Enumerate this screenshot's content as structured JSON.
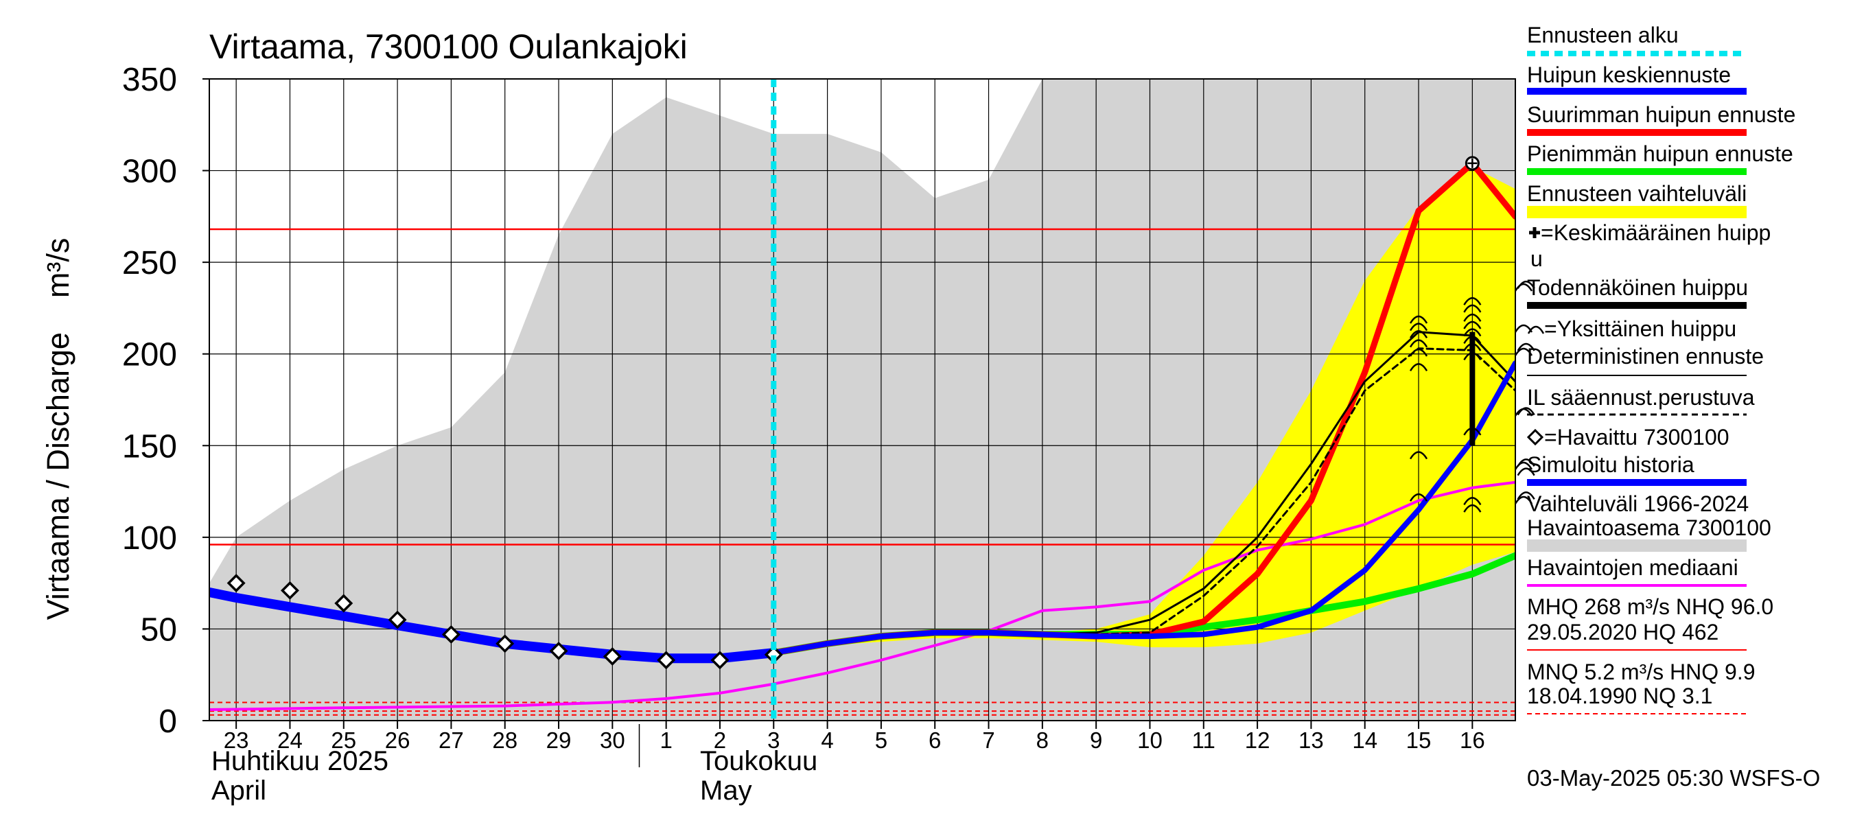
{
  "chart_data": {
    "type": "line",
    "title": "Virtaama, 7300100 Oulankajoki",
    "ylabel": "Virtaama / Discharge    m³/s",
    "ylim": [
      0,
      350
    ],
    "yticks": [
      0,
      50,
      100,
      150,
      200,
      250,
      300,
      350
    ],
    "x_day_range": [
      22.5,
      46.8
    ],
    "x_tick_labels": [
      "23",
      "24",
      "25",
      "26",
      "27",
      "28",
      "29",
      "30",
      "1",
      "2",
      "3",
      "4",
      "5",
      "6",
      "7",
      "8",
      "9",
      "10",
      "11",
      "12",
      "13",
      "14",
      "15",
      "16"
    ],
    "x_tick_days": [
      23,
      24,
      25,
      26,
      27,
      28,
      29,
      30,
      31,
      32,
      33,
      34,
      35,
      36,
      37,
      38,
      39,
      40,
      41,
      42,
      43,
      44,
      45,
      46
    ],
    "month_labels": {
      "april_fi": "Huhtikuu  2025",
      "april_en": "April",
      "may_fi": "Toukokuu",
      "may_en": "May"
    },
    "forecast_start_day": 33,
    "reference_lines": {
      "MHQ": 268,
      "NHQ": 96.0,
      "MNQ": 5.2,
      "HNQ": 9.9,
      "NQ": 3.1
    },
    "history_range": {
      "name": "Vaihteluväli 1966-2024",
      "x": [
        22.5,
        23,
        24,
        25,
        26,
        27,
        28,
        29,
        30,
        31,
        32,
        33,
        34,
        35,
        36,
        37,
        38,
        39,
        39.5,
        40,
        46.8
      ],
      "upper": [
        75,
        100,
        120,
        137,
        150,
        160,
        190,
        265,
        320,
        340,
        330,
        320,
        320,
        310,
        285,
        295,
        350,
        350,
        350,
        350,
        350
      ],
      "lower": [
        0,
        0,
        0,
        0,
        0,
        0,
        0,
        0,
        0,
        0,
        0,
        0,
        0,
        0,
        0,
        0,
        0,
        0,
        0,
        0,
        0
      ]
    },
    "forecast_range": {
      "name": "Ennusteen vaihteluväli",
      "x": [
        33,
        34,
        35,
        36,
        37,
        38,
        39,
        40,
        41,
        42,
        43,
        44,
        45,
        46,
        46.8
      ],
      "upper": [
        37,
        44,
        47,
        49,
        49,
        48,
        50,
        58,
        90,
        130,
        180,
        240,
        280,
        302,
        290
      ],
      "lower": [
        35,
        41,
        43,
        45,
        45,
        44,
        43,
        40,
        40,
        42,
        48,
        60,
        72,
        85,
        92
      ]
    },
    "series": [
      {
        "name": "Havaintojen mediaani",
        "color": "#ff00ff",
        "x": [
          22.5,
          25,
          28,
          30,
          31,
          32,
          33,
          34,
          35,
          36,
          37,
          38,
          39,
          40,
          41,
          42,
          43,
          44,
          45,
          46,
          46.8
        ],
        "y": [
          6,
          7,
          8,
          10,
          12,
          15,
          20,
          26,
          33,
          41,
          49,
          60,
          62,
          65,
          82,
          93,
          99,
          107,
          120,
          127,
          130
        ]
      },
      {
        "name": "Simuloitu historia",
        "color": "#0000ff",
        "x": [
          22.5,
          23,
          24,
          25,
          26,
          27,
          28,
          29,
          30,
          31,
          32,
          33
        ],
        "y": [
          70,
          67,
          62,
          57,
          52,
          47,
          42,
          39,
          36,
          34,
          34,
          37
        ]
      },
      {
        "name": "Pienimmän huipun ennuste",
        "color": "#00ee00",
        "x": [
          33,
          34,
          35,
          36,
          37,
          38,
          39,
          40,
          41,
          42,
          43,
          44,
          45,
          46,
          46.8
        ],
        "y": [
          37,
          42,
          46,
          48,
          48,
          47,
          47,
          47,
          51,
          55,
          60,
          65,
          72,
          80,
          90
        ]
      },
      {
        "name": "Suurimman huipun ennuste",
        "color": "#ff0000",
        "x": [
          33,
          34,
          35,
          36,
          37,
          38,
          39,
          40,
          41,
          42,
          43,
          44,
          45,
          46,
          46.8
        ],
        "y": [
          37,
          42,
          46,
          48,
          48,
          47,
          46,
          47,
          54,
          80,
          120,
          190,
          278,
          304,
          275
        ]
      },
      {
        "name": "IL sääennust.perustuva",
        "color": "#000000",
        "x": [
          33,
          34,
          35,
          36,
          37,
          38,
          39,
          40,
          41,
          42,
          43,
          44,
          45,
          46,
          46.8
        ],
        "y": [
          37,
          42,
          46,
          48,
          48,
          47,
          47,
          48,
          68,
          95,
          130,
          180,
          203,
          202,
          180
        ]
      },
      {
        "name": "Deterministinen ennuste",
        "color": "#000000",
        "x": [
          33,
          34,
          35,
          36,
          37,
          38,
          39,
          40,
          41,
          42,
          43,
          44,
          45,
          46,
          46.8
        ],
        "y": [
          37,
          42,
          46,
          48,
          48,
          47,
          48,
          55,
          72,
          100,
          140,
          185,
          212,
          210,
          185
        ]
      },
      {
        "name": "Huipun keskiennuste",
        "color": "#0000ff",
        "x": [
          33,
          34,
          35,
          36,
          37,
          38,
          39,
          40,
          41,
          42,
          43,
          44,
          45,
          46,
          46.8
        ],
        "y": [
          37,
          42,
          46,
          48,
          48,
          47,
          46,
          46,
          47,
          51,
          60,
          82,
          115,
          153,
          195
        ]
      }
    ],
    "observed": {
      "name": "Havaittu 7300100",
      "x": [
        23,
        24,
        25,
        26,
        27,
        28,
        29,
        30,
        31,
        32,
        33
      ],
      "y": [
        75,
        71,
        64,
        55,
        47,
        42,
        38,
        35,
        33,
        33,
        36
      ]
    },
    "single_peaks": {
      "name": "Yksittäinen huippu",
      "points": [
        [
          45,
          122
        ],
        [
          45,
          145
        ],
        [
          45,
          193
        ],
        [
          45,
          201
        ],
        [
          45,
          206
        ],
        [
          45,
          211
        ],
        [
          45,
          215
        ],
        [
          45,
          219
        ],
        [
          46,
          116
        ],
        [
          46,
          120
        ],
        [
          46,
          158
        ],
        [
          46,
          199
        ],
        [
          46,
          204
        ],
        [
          46,
          208
        ],
        [
          46,
          212
        ],
        [
          46,
          216
        ],
        [
          46,
          220
        ],
        [
          46,
          225
        ],
        [
          46,
          229
        ],
        [
          47,
          123
        ],
        [
          47,
          136
        ],
        [
          47,
          141
        ],
        [
          47,
          169
        ],
        [
          47,
          204
        ],
        [
          47,
          238
        ]
      ]
    },
    "peak_marker": {
      "name": "Keskimääräinen huippu",
      "x": 46,
      "y": 304
    },
    "likely_peak": {
      "name": "Todennäköinen huippu",
      "x": 46,
      "y_low": 150,
      "y_high": 212
    },
    "legend": {
      "position": "right",
      "items": [
        {
          "label": "Ennusteen alku",
          "color": "#00e5ee",
          "style": "dashed-thick"
        },
        {
          "label": "Huipun keskiennuste",
          "color": "#0000ff",
          "style": "thick"
        },
        {
          "label": "Suurimman huipun ennuste",
          "color": "#ff0000",
          "style": "thick"
        },
        {
          "label": "Pienimmän huipun ennuste",
          "color": "#00ee00",
          "style": "thick"
        },
        {
          "label": "Ennusteen vaihteluväli",
          "color": "#ffff00",
          "style": "band"
        },
        {
          "label": "=Keskimääräinen huipp u",
          "color": "#000000",
          "style": "none"
        },
        {
          "label": "Todennäköinen huippu",
          "color": "#000000",
          "style": "thick"
        },
        {
          "label": "=Yksittäinen huippu",
          "color": "#000000",
          "style": "none"
        },
        {
          "label": "Deterministinen ennuste",
          "color": "#000000",
          "style": "thin"
        },
        {
          "label": "IL sääennust.perustuva",
          "color": "#000000",
          "style": "dashed"
        },
        {
          "label": "=Havaittu 7300100",
          "color": "#000000",
          "style": "none"
        },
        {
          "label": "Simuloitu historia",
          "color": "#0000ff",
          "style": "thick"
        },
        {
          "label": "Vaihteluväli 1966-2024",
          "color": "#d3d3d3",
          "style": "none"
        },
        {
          "label": " Havaintoasema 7300100",
          "color": "#d3d3d3",
          "style": "band"
        },
        {
          "label": "Havaintojen mediaani",
          "color": "#ff00ff",
          "style": "medium"
        },
        {
          "label": "MHQ  268 m³/s NHQ 96.0",
          "color": "#000000",
          "style": "none"
        },
        {
          "label": "29.05.2020 HQ  462",
          "color": "#ff0000",
          "style": "thin"
        },
        {
          "label": "MNQ  5.2 m³/s HNQ  9.9",
          "color": "#000000",
          "style": "none"
        },
        {
          "label": "18.04.1990 NQ  3.1",
          "color": "#ff0000",
          "style": "dashed-thin"
        }
      ]
    },
    "footer": "03-May-2025 05:30 WSFS-O"
  }
}
